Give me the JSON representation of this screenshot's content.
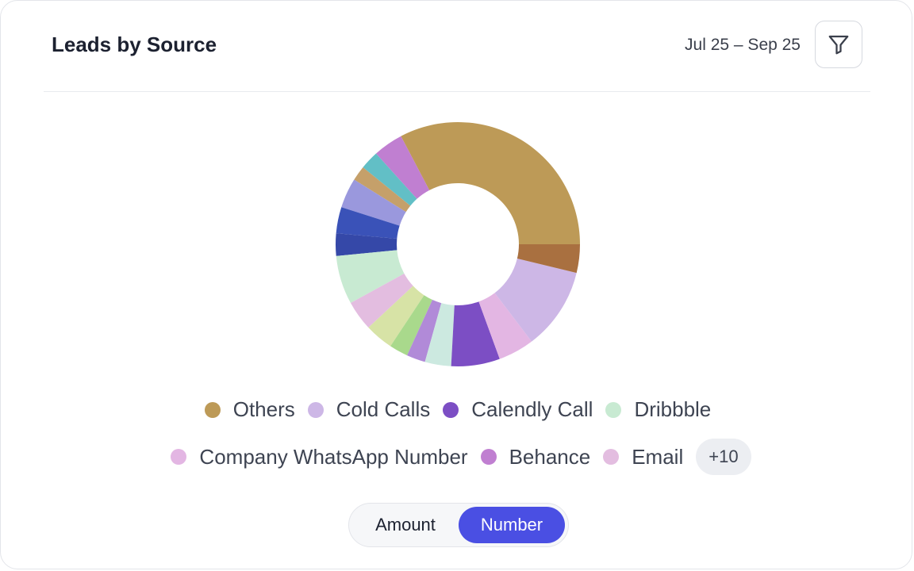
{
  "header": {
    "title": "Leads by Source",
    "date_range": "Jul 25 – Sep 25",
    "filter_icon": "filter-icon"
  },
  "chart_data": {
    "type": "pie",
    "donut": true,
    "series": [
      {
        "name": "Others",
        "value": 33.0,
        "color": "#bd9a57"
      },
      {
        "name": "Behance",
        "value": 4.0,
        "color": "#c07fd1"
      },
      {
        "value": 2.5,
        "color": "#62bfc6"
      },
      {
        "value": 2.0,
        "color": "#c5a06a"
      },
      {
        "value": 4.0,
        "color": "#9a98dd"
      },
      {
        "value": 3.5,
        "color": "#3a52b8"
      },
      {
        "value": 3.0,
        "color": "#3548a8"
      },
      {
        "name": "Dribbble",
        "value": 6.5,
        "color": "#c8ead2"
      },
      {
        "name": "Email",
        "value": 4.0,
        "color": "#e3bde0"
      },
      {
        "value": 3.8,
        "color": "#d7e3a6"
      },
      {
        "value": 2.5,
        "color": "#a9d98c"
      },
      {
        "value": 2.5,
        "color": "#b18ad8"
      },
      {
        "value": 3.5,
        "color": "#cce9e0"
      },
      {
        "name": "Calendly Call",
        "value": 6.5,
        "color": "#7c4ec4"
      },
      {
        "name": "Company WhatsApp Number",
        "value": 4.8,
        "color": "#e3b6e3"
      },
      {
        "name": "Cold Calls",
        "value": 11.0,
        "color": "#cdb7e6"
      },
      {
        "value": 3.8,
        "color": "#a97040"
      }
    ]
  },
  "legend": {
    "row1": [
      {
        "label": "Others",
        "color": "#bd9a57"
      },
      {
        "label": "Cold Calls",
        "color": "#cdb7e6"
      },
      {
        "label": "Calendly Call",
        "color": "#7c4ec4"
      },
      {
        "label": "Dribbble",
        "color": "#c8ead2"
      }
    ],
    "row2": [
      {
        "label": "Company WhatsApp Number",
        "color": "#e3b6e3"
      },
      {
        "label": "Behance",
        "color": "#c07fd1"
      },
      {
        "label": "Email",
        "color": "#e3bde0"
      }
    ],
    "more_label": "+10"
  },
  "toggle": {
    "options": [
      "Amount",
      "Number"
    ],
    "active": "Number"
  }
}
